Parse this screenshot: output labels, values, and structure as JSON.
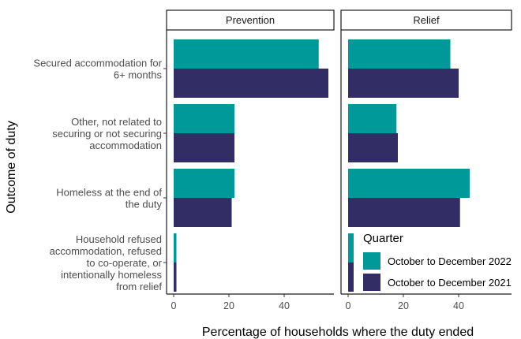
{
  "chart_data": {
    "type": "bar",
    "orientation": "horizontal",
    "xlabel": "Percentage of households where the duty ended",
    "ylabel": "Outcome of duty",
    "xlim": [
      0,
      57
    ],
    "xticks": [
      0,
      20,
      40
    ],
    "grid": false,
    "legend": {
      "title": "Quarter",
      "position": "bottom-right, inside Relief panel"
    },
    "categories": [
      "Secured accommodation for 6+ months",
      "Other, not related to securing or not securing accommodation",
      "Homeless at the end of the duty",
      "Household refused accommodation, refused to co-operate, or intentionally homeless from relief"
    ],
    "category_label_lines": [
      [
        "Secured accommodation for",
        "6+ months"
      ],
      [
        "Other, not related to",
        "securing or not securing",
        "accommodation"
      ],
      [
        "Homeless at the end of",
        "the duty"
      ],
      [
        "Household refused",
        "accommodation, refused",
        "to co-operate, or",
        "intentionally homeless",
        "from relief"
      ]
    ],
    "series": [
      {
        "name": "October to December 2022",
        "color": "#009999"
      },
      {
        "name": "October to December 2021",
        "color": "#332d65"
      }
    ],
    "panels": [
      {
        "title": "Prevention",
        "values": {
          "October to December 2022": [
            52.5,
            22,
            22,
            1
          ],
          "October to December 2021": [
            56,
            22,
            21,
            1
          ]
        }
      },
      {
        "title": "Relief",
        "values": {
          "October to December 2022": [
            37,
            17.5,
            44,
            2
          ],
          "October to December 2021": [
            40,
            18,
            40.5,
            2
          ]
        }
      }
    ]
  }
}
